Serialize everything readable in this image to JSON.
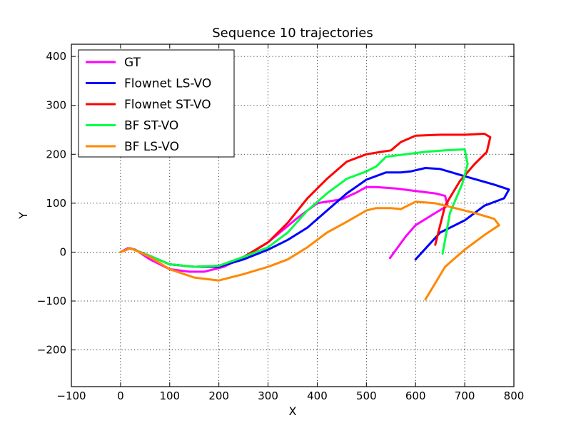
{
  "chart_data": {
    "type": "line",
    "title": "Sequence 10 trajectories",
    "xlabel": "X",
    "ylabel": "Y",
    "xlim": [
      -100,
      800
    ],
    "ylim": [
      -275,
      425
    ],
    "xticks": [
      -100,
      0,
      100,
      200,
      300,
      400,
      500,
      600,
      700,
      800
    ],
    "yticks": [
      -200,
      -100,
      0,
      100,
      200,
      300,
      400
    ],
    "grid": true,
    "legend_position": "top-left",
    "series": [
      {
        "name": "GT",
        "color": "#ff00ff",
        "x": [
          0,
          15,
          30,
          60,
          100,
          140,
          170,
          210,
          260,
          300,
          330,
          360,
          400,
          450,
          480,
          500,
          520,
          560,
          600,
          640,
          660,
          665,
          640,
          600,
          580,
          548
        ],
        "y": [
          0,
          8,
          5,
          -15,
          -35,
          -40,
          -40,
          -30,
          -5,
          20,
          45,
          70,
          100,
          108,
          122,
          133,
          133,
          130,
          125,
          120,
          115,
          95,
          80,
          55,
          32,
          -12
        ]
      },
      {
        "name": "Flownet LS-VO",
        "color": "#0000ff",
        "x": [
          0,
          20,
          60,
          100,
          150,
          200,
          250,
          300,
          340,
          380,
          420,
          460,
          500,
          540,
          570,
          590,
          620,
          650,
          700,
          760,
          790,
          780,
          740,
          700,
          650,
          600
        ],
        "y": [
          0,
          8,
          -8,
          -25,
          -30,
          -30,
          -15,
          5,
          25,
          50,
          85,
          120,
          148,
          163,
          163,
          165,
          172,
          170,
          155,
          138,
          128,
          110,
          95,
          65,
          40,
          -15
        ]
      },
      {
        "name": "Flownet ST-VO",
        "color": "#ff0000",
        "x": [
          0,
          20,
          60,
          100,
          150,
          200,
          250,
          300,
          340,
          380,
          420,
          460,
          500,
          530,
          550,
          570,
          600,
          650,
          700,
          740,
          752,
          745,
          720,
          690,
          660,
          640
        ],
        "y": [
          0,
          8,
          -8,
          -25,
          -30,
          -28,
          -10,
          20,
          60,
          110,
          150,
          185,
          200,
          205,
          208,
          225,
          238,
          240,
          240,
          242,
          235,
          205,
          180,
          145,
          95,
          15
        ]
      },
      {
        "name": "BF ST-VO",
        "color": "#00ff44",
        "x": [
          0,
          20,
          60,
          100,
          150,
          200,
          250,
          300,
          340,
          380,
          420,
          460,
          500,
          520,
          540,
          580,
          620,
          660,
          700,
          706,
          695,
          670,
          655
        ],
        "y": [
          0,
          8,
          -8,
          -25,
          -30,
          -28,
          -10,
          10,
          40,
          85,
          120,
          150,
          165,
          175,
          195,
          200,
          205,
          208,
          210,
          180,
          140,
          80,
          -3
        ]
      },
      {
        "name": "BF LS-VO",
        "color": "#ff8800",
        "x": [
          0,
          20,
          60,
          100,
          150,
          200,
          250,
          300,
          340,
          380,
          420,
          460,
          500,
          520,
          550,
          570,
          600,
          640,
          680,
          720,
          760,
          770,
          740,
          700,
          660,
          620
        ],
        "y": [
          0,
          8,
          -10,
          -35,
          -52,
          -58,
          -45,
          -30,
          -15,
          10,
          40,
          62,
          85,
          90,
          90,
          88,
          103,
          100,
          90,
          80,
          68,
          55,
          35,
          5,
          -30,
          -97
        ]
      }
    ]
  }
}
